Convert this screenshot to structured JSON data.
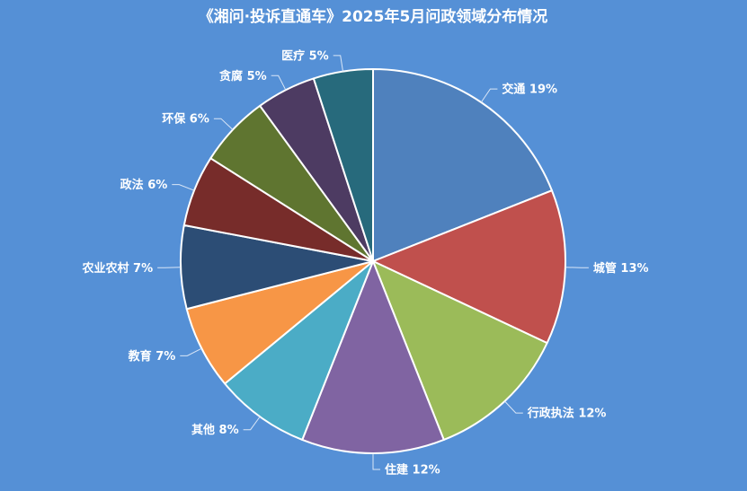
{
  "chart_data": {
    "type": "pie",
    "title": "《湘问·投诉直通车》2025年5月问政领域分布情况",
    "start_category": "交通",
    "direction": "clockwise",
    "categories": [
      "交通",
      "城管",
      "行政执法",
      "住建",
      "其他",
      "教育",
      "农业农村",
      "政法",
      "环保",
      "贪腐",
      "医疗"
    ],
    "values": [
      19,
      13,
      12,
      12,
      8,
      7,
      7,
      6,
      6,
      5,
      5
    ],
    "labels": [
      "交通 19%",
      "城管 13%",
      "行政执法 12%",
      "住建 12%",
      "其他 8%",
      "教育 7%",
      "农业农村 7%",
      "政法 6%",
      "环保 6%",
      "贪腐 5%",
      "医疗 5%"
    ],
    "colors": [
      "#4f81bd",
      "#c0504d",
      "#9bbb59",
      "#8064a2",
      "#4bacc6",
      "#f79646",
      "#2c4d75",
      "#772c2a",
      "#5f7530",
      "#4d3b62",
      "#276a7c"
    ],
    "background": "#5590d6",
    "text_color": "#ffffff",
    "slice_border": "#ffffff"
  }
}
